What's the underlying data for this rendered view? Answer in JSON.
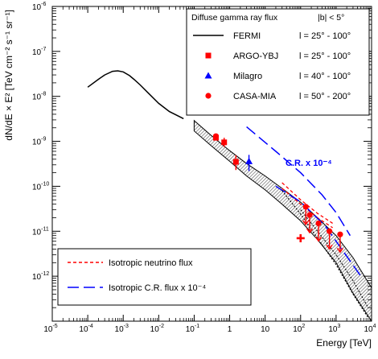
{
  "chart_data": {
    "type": "line",
    "title": "",
    "xlabel": "Energy [TeV]",
    "ylabel": "dN/dE × E² [TeV cm⁻² s⁻¹ sr⁻¹]",
    "xscale": "log",
    "yscale": "log",
    "xlim": [
      1e-05,
      10000
    ],
    "ylim": [
      1e-13,
      1e-06
    ],
    "x_ticks": [
      {
        "v": 1e-05,
        "b": "10",
        "e": "-5"
      },
      {
        "v": 0.0001,
        "b": "10",
        "e": "-4"
      },
      {
        "v": 0.001,
        "b": "10",
        "e": "-3"
      },
      {
        "v": 0.01,
        "b": "10",
        "e": "-2"
      },
      {
        "v": 0.1,
        "b": "10",
        "e": "-1"
      },
      {
        "v": 1,
        "b": "1",
        "e": ""
      },
      {
        "v": 10,
        "b": "10",
        "e": ""
      },
      {
        "v": 100,
        "b": "10",
        "e": "2"
      },
      {
        "v": 1000,
        "b": "10",
        "e": "3"
      },
      {
        "v": 10000,
        "b": "10",
        "e": "4"
      }
    ],
    "y_ticks": [
      {
        "v": 1e-12,
        "b": "10",
        "e": "-12"
      },
      {
        "v": 1e-11,
        "b": "10",
        "e": "-11"
      },
      {
        "v": 1e-10,
        "b": "10",
        "e": "-10"
      },
      {
        "v": 1e-09,
        "b": "10",
        "e": "-9"
      },
      {
        "v": 1e-08,
        "b": "10",
        "e": "-8"
      },
      {
        "v": 1e-07,
        "b": "10",
        "e": "-7"
      },
      {
        "v": 1e-06,
        "b": "10",
        "e": "-6"
      }
    ],
    "legend_top": {
      "title": "Diffuse gamma ray flux",
      "title_right": "|b| < 5°",
      "entries": [
        {
          "name": "FERMI",
          "range": "l = 25° - 100°",
          "marker": "line",
          "color": "#000000"
        },
        {
          "name": "ARGO-YBJ",
          "range": "l = 25° - 100°",
          "marker": "square",
          "color": "#ff0000"
        },
        {
          "name": "Milagro",
          "range": "l = 40° - 100°",
          "marker": "triangle",
          "color": "#0000ff"
        },
        {
          "name": "CASA-MIA",
          "range": "l = 50° - 200°",
          "marker": "circle",
          "color": "#ff0000"
        }
      ]
    },
    "legend_bottom": {
      "entries": [
        {
          "name": "Isotropic neutrino flux",
          "style": "dashed-short",
          "color": "#ff0000"
        },
        {
          "name": "Isotropic C.R. flux x 10⁻⁴",
          "style": "dashed-long",
          "color": "#0000ff"
        }
      ]
    },
    "annotation": "C.R. x 10⁻⁴",
    "series": [
      {
        "name": "FERMI",
        "style": "solid",
        "color": "#000000",
        "x": [
          0.0001,
          0.0002,
          0.0003,
          0.0005,
          0.0007,
          0.001,
          0.0015,
          0.002,
          0.003,
          0.005,
          0.01,
          0.02,
          0.05
        ],
        "y": [
          1.6e-08,
          2.4e-08,
          3e-08,
          3.6e-08,
          3.7e-08,
          3.5e-08,
          2.9e-08,
          2.4e-08,
          1.8e-08,
          1.2e-08,
          7e-09,
          4.6e-09,
          3.2e-09
        ]
      },
      {
        "name": "",
        "style": "dashed-short",
        "color": "#ff0000",
        "x": [
          30,
          100,
          300,
          800
        ],
        "y": [
          1.2e-10,
          5e-11,
          2.5e-11,
          1.5e-11
        ]
      },
      {
        "name": "",
        "style": "dashed-short",
        "color": "#ff0000",
        "x": [
          30,
          100,
          300,
          800
        ],
        "y": [
          9e-11,
          4e-11,
          2e-11,
          1.2e-11
        ]
      },
      {
        "name": "",
        "style": "dashed-long",
        "color": "#0000ff",
        "x": [
          3,
          20,
          100,
          400,
          1000,
          2500
        ],
        "y": [
          2.1e-09,
          6e-10,
          2e-10,
          6.5e-11,
          2.6e-11,
          8e-12
        ]
      },
      {
        "name": "",
        "style": "dashed-long",
        "color": "#0000ff",
        "x": [
          20,
          100,
          500,
          1000,
          5000
        ],
        "y": [
          1e-10,
          4.5e-11,
          1.3e-11,
          6e-12,
          1e-12
        ]
      },
      {
        "name": "",
        "style": "dotted",
        "color": "#000000",
        "x": [
          30,
          100,
          300,
          1000,
          3000,
          8000
        ],
        "y": [
          8e-11,
          2.4e-11,
          7e-12,
          1.8e-12,
          4e-13,
          1.2e-13
        ]
      },
      {
        "name": "",
        "style": "dotted",
        "color": "#000000",
        "x": [
          100,
          300,
          1000,
          3000,
          8000
        ],
        "y": [
          3e-11,
          1e-11,
          3e-12,
          8e-13,
          2e-13
        ]
      }
    ],
    "band": {
      "x": [
        0.1,
        0.3,
        1,
        3,
        10,
        30,
        100,
        300,
        1000,
        3000,
        10000
      ],
      "upper": [
        2.9e-09,
        1.35e-09,
        6.2e-10,
        3.2e-10,
        1.7e-10,
        9e-11,
        4.4e-11,
        2e-11,
        8e-12,
        2.6e-12,
        5.5e-13
      ],
      "lower": [
        1.7e-09,
        8e-10,
        3.6e-10,
        1.7e-10,
        8.3e-11,
        4e-11,
        1.7e-11,
        6.5e-12,
        2e-12,
        4.2e-13,
        1e-13
      ]
    },
    "points": [
      {
        "series": "ARGO-YBJ",
        "marker": "square",
        "color": "#ff0000",
        "x": 0.41,
        "y": 1.2e-09,
        "ylo": 1.05e-09,
        "yhi": 1.35e-09
      },
      {
        "series": "ARGO-YBJ",
        "marker": "square",
        "color": "#ff0000",
        "x": 0.7,
        "y": 9.5e-10,
        "ylo": 7.5e-10,
        "yhi": 1.2e-09
      },
      {
        "series": "ARGO-YBJ",
        "marker": "square",
        "color": "#ff0000",
        "x": 1.5,
        "y": 3.5e-10,
        "ylo": 2.3e-10,
        "yhi": 4.9e-10
      },
      {
        "series": "Milagro",
        "marker": "triangle",
        "color": "#0000ff",
        "x": 3.5,
        "y": 3.6e-10,
        "ylo": 2.2e-10,
        "yhi": 5e-10
      },
      {
        "series": "CASA-MIA",
        "marker": "circle",
        "color": "#ff0000",
        "x": 0.41,
        "y": 1.3e-09,
        "ylo": 1.15e-09,
        "yhi": 1.45e-09
      },
      {
        "series": "CASA-MIA",
        "marker": "circle",
        "color": "#ff0000",
        "x": 140,
        "y": 3.5e-11,
        "upper_limit": true
      },
      {
        "series": "CASA-MIA",
        "marker": "circle",
        "color": "#ff0000",
        "x": 180,
        "y": 2.3e-11,
        "upper_limit": true
      },
      {
        "series": "CASA-MIA",
        "marker": "circle",
        "color": "#ff0000",
        "x": 320,
        "y": 1.5e-11,
        "upper_limit": true
      },
      {
        "series": "CASA-MIA",
        "marker": "circle",
        "color": "#ff0000",
        "x": 650,
        "y": 1e-11,
        "upper_limit": true
      },
      {
        "series": "CASA-MIA",
        "marker": "circle",
        "color": "#ff0000",
        "x": 1300,
        "y": 8.5e-12,
        "upper_limit": true
      },
      {
        "series": "",
        "marker": "cross",
        "color": "#ff0000",
        "x": 100,
        "y": 7e-12
      }
    ]
  }
}
